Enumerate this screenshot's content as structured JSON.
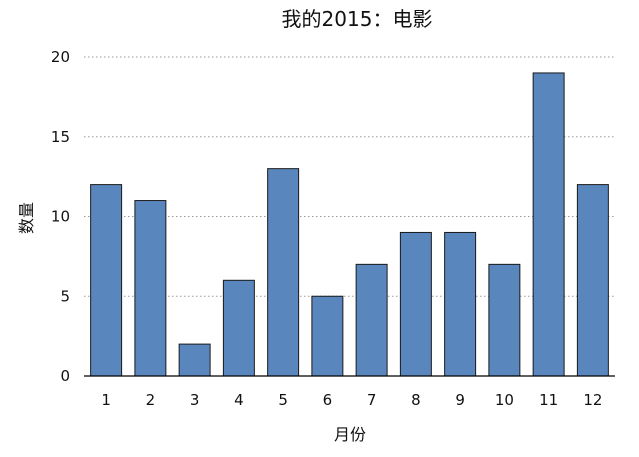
{
  "chart_data": {
    "type": "bar",
    "title": "我的2015：电影",
    "xlabel": "月份",
    "ylabel": "数量",
    "categories": [
      "1",
      "2",
      "3",
      "4",
      "5",
      "6",
      "7",
      "8",
      "9",
      "10",
      "11",
      "12"
    ],
    "values": [
      12,
      11,
      2,
      6,
      13,
      5,
      7,
      9,
      9,
      7,
      19,
      12
    ],
    "ylim": [
      0,
      20
    ],
    "yticks": [
      "0",
      "5",
      "10",
      "15",
      "20"
    ],
    "grid": true,
    "legend": "none",
    "bar_color": "#5a86be"
  }
}
